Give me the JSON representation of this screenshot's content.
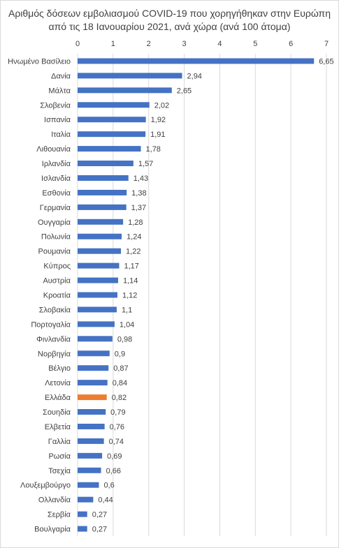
{
  "chart_data": {
    "type": "bar",
    "orientation": "horizontal",
    "title": "Αριθμός δόσεων εμβολιασμού COVID-19 που χορηγήθηκαν στην Ευρώπη από τις 18 Ιανουαρίου 2021, ανά χώρα (ανά 100 άτομα)",
    "xlim": [
      0,
      7
    ],
    "xticks": [
      "0",
      "1",
      "2",
      "3",
      "4",
      "5",
      "6",
      "7"
    ],
    "grid": true,
    "legend": "none",
    "categories": [
      "Ηνωμένο Βασίλειο",
      "Δανία",
      "Μάλτα",
      "Σλοβενία",
      "Ισπανία",
      "Ιταλία",
      "Λιθουανία",
      "Ιρλανδία",
      "Ισλανδία",
      "Εσθονία",
      "Γερμανία",
      "Ουγγαρία",
      "Πολωνία",
      "Ρουμανία",
      "Κύπρος",
      "Αυστρία",
      "Κροατία",
      "Σλοβακία",
      "Πορτογαλία",
      "Φινλανδία",
      "Νορβηγία",
      "Βέλγιο",
      "Λετονία",
      "Ελλάδα",
      "Σουηδία",
      "Ελβετία",
      "Γαλλία",
      "Ρωσία",
      "Τσεχία",
      "Λουξεμβούργο",
      "Ολλανδία",
      "Σερβία",
      "Βουλγαρία"
    ],
    "values": [
      6.65,
      2.94,
      2.65,
      2.02,
      1.92,
      1.91,
      1.78,
      1.57,
      1.43,
      1.38,
      1.37,
      1.28,
      1.24,
      1.22,
      1.17,
      1.14,
      1.12,
      1.1,
      1.04,
      0.98,
      0.9,
      0.87,
      0.84,
      0.82,
      0.79,
      0.76,
      0.74,
      0.69,
      0.66,
      0.6,
      0.44,
      0.27,
      0.27
    ],
    "labels": [
      "6,65",
      "2,94",
      "2,65",
      "2,02",
      "1,92",
      "1,91",
      "1,78",
      "1,57",
      "1,43",
      "1,38",
      "1,37",
      "1,28",
      "1,24",
      "1,22",
      "1,17",
      "1,14",
      "1,12",
      "1,1",
      "1,04",
      "0,98",
      "0,9",
      "0,87",
      "0,84",
      "0,82",
      "0,79",
      "0,76",
      "0,74",
      "0,69",
      "0,66",
      "0,6",
      "0,44",
      "0,27",
      "0,27"
    ],
    "highlight": "Ελλάδα",
    "colors": {
      "bar": "#4472c4",
      "highlight": "#ed7d31",
      "grid": "#d9d9d9"
    }
  }
}
